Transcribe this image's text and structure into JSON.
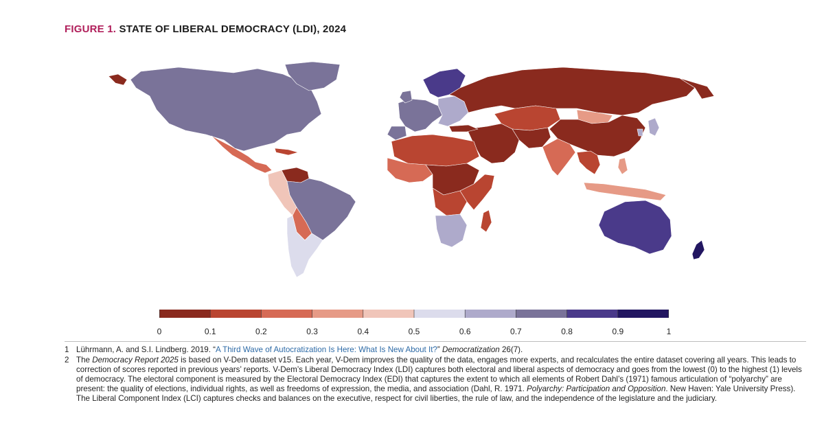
{
  "figure": {
    "label": "FIGURE 1.",
    "title": "STATE OF LIBERAL DEMOCRACY (LDI), 2024"
  },
  "legend": {
    "ticks": [
      "0",
      "0.1",
      "0.2",
      "0.3",
      "0.4",
      "0.5",
      "0.6",
      "0.7",
      "0.8",
      "0.9",
      "1"
    ],
    "bins": [
      {
        "range": [
          0.0,
          0.1
        ],
        "color": "#8a2a1e"
      },
      {
        "range": [
          0.1,
          0.2
        ],
        "color": "#b94531"
      },
      {
        "range": [
          0.2,
          0.3
        ],
        "color": "#d66a55"
      },
      {
        "range": [
          0.3,
          0.4
        ],
        "color": "#e69a86"
      },
      {
        "range": [
          0.4,
          0.5
        ],
        "color": "#f0c5b9"
      },
      {
        "range": [
          0.5,
          0.6
        ],
        "color": "#dcdcec"
      },
      {
        "range": [
          0.6,
          0.7
        ],
        "color": "#aeaacb"
      },
      {
        "range": [
          0.7,
          0.8
        ],
        "color": "#7a7399"
      },
      {
        "range": [
          0.8,
          0.9
        ],
        "color": "#4a3a8a"
      },
      {
        "range": [
          0.9,
          1.0
        ],
        "color": "#221661"
      }
    ]
  },
  "regions": {
    "north_america": "#7a7399",
    "mexico_central_america": "#d66a55",
    "caribbean": "#b94531",
    "venezuela": "#8a2a1e",
    "south_america_north": "#f0c5b9",
    "brazil": "#7a7399",
    "andes_south": "#aeaacb",
    "bolivia_paraguay": "#d66a55",
    "chile_argentina": "#dcdcec",
    "western_europe": "#7a7399",
    "nordics": "#4a3a8a",
    "eastern_europe": "#aeaacb",
    "russia": "#8a2a1e",
    "central_asia": "#b94531",
    "china": "#8a2a1e",
    "mongolia": "#e69a86",
    "middle_east": "#8a2a1e",
    "north_africa": "#b94531",
    "west_africa": "#d66a55",
    "central_africa": "#8a2a1e",
    "east_africa": "#b94531",
    "southern_africa": "#aeaacb",
    "india": "#d66a55",
    "southeast_asia": "#b94531",
    "indonesia": "#e69a86",
    "japan_korea": "#aeaacb",
    "australia": "#4a3a8a",
    "new_zealand": "#221661",
    "greenland": "#7a7399",
    "madagascar": "#b94531"
  },
  "footnotes": [
    {
      "number": "1",
      "text_a": "Lührmann, A. and S.I. Lindberg. 2019. “",
      "link": "A Third Wave of Autocratization Is Here: What Is New About It?",
      "text_b": "” ",
      "italic": "Democratization",
      "text_c": " 26(7)."
    },
    {
      "number": "2",
      "text_a": "The ",
      "italic_a": "Democracy Report 2025",
      "text_b": " is based on V-Dem dataset v15. Each year, V-Dem improves the quality of the data, engages more experts, and recalculates the entire dataset covering all years. This leads to correction of scores reported in previous years’ reports. V-Dem’s Liberal Democracy Index (LDI) captures both electoral and liberal aspects of democracy and goes from the lowest (0) to the highest (1) levels of democracy. The electoral component is measured by the Electoral Democracy Index (EDI) that captures the extent to which all elements of Robert Dahl’s (1971) famous articulation of “polyarchy” are present: the quality of elections, individual rights, as well as freedoms of expression, the media, and association (Dahl, R. 1971. ",
      "italic_b": "Polyarchy: Participation and Opposition",
      "text_c": ". New Haven: Yale University Press). The Liberal Component Index (LCI) captures checks and balances on the executive, respect for civil liberties, the rule of law, and the independence of the legislature and the judiciary."
    }
  ]
}
